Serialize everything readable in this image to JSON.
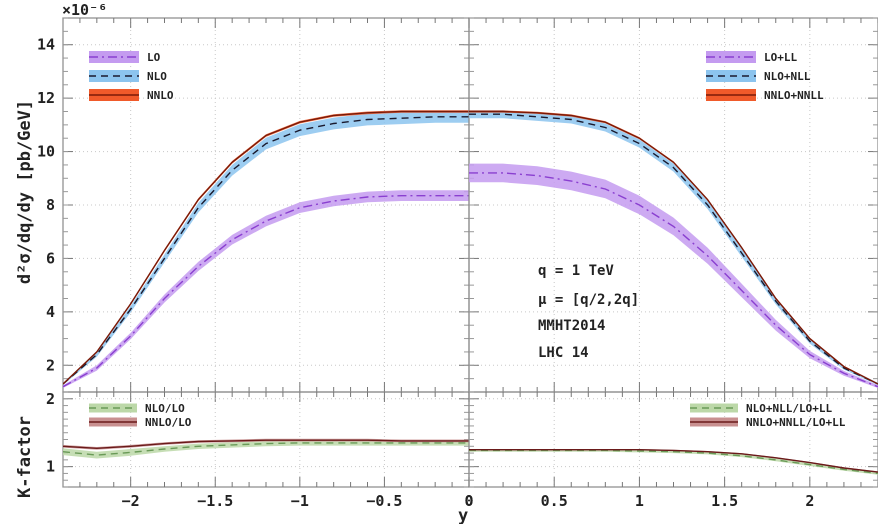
{
  "figure": {
    "exponent_label": "×10⁻⁶",
    "xlabel": "y",
    "top_ylabel": "d²σ/dq/dy [pb/GeV]",
    "bottom_ylabel": "K-factor",
    "annotations": [
      "q = 1 TeV",
      "μ = [q/2,2q]",
      "MMHT2014",
      "LHC 14"
    ]
  },
  "chart_data": [
    {
      "type": "line",
      "panel": "top-left",
      "ylabel": "d²σ/dq/dy [pb/GeV]",
      "xlim": [
        -2.4,
        0
      ],
      "ylim": [
        1,
        15
      ],
      "x_ticks": [
        -2,
        -1.5,
        -1,
        -0.5,
        0
      ],
      "y_ticks": [
        2,
        4,
        6,
        8,
        10,
        12,
        14
      ],
      "y_scale_factor": "1e-6",
      "legend_position": "top-left",
      "x": [
        -2.4,
        -2.2,
        -2.0,
        -1.8,
        -1.6,
        -1.4,
        -1.2,
        -1.0,
        -0.8,
        -0.6,
        -0.4,
        -0.2,
        0.0
      ],
      "series": [
        {
          "name": "LO",
          "style": "dash-dot",
          "color": "#8a3fd0",
          "band_color": "#c49bf0",
          "values": [
            1.2,
            1.9,
            3.1,
            4.5,
            5.7,
            6.7,
            7.4,
            7.9,
            8.15,
            8.3,
            8.35,
            8.35,
            8.35
          ],
          "band_halfwidth": [
            0.05,
            0.1,
            0.12,
            0.15,
            0.17,
            0.18,
            0.2,
            0.2,
            0.2,
            0.2,
            0.2,
            0.2,
            0.2
          ]
        },
        {
          "name": "NLO",
          "style": "dashed",
          "color": "#1a1a2e",
          "band_color": "#8cc4ee",
          "values": [
            1.3,
            2.4,
            4.1,
            6.0,
            7.9,
            9.3,
            10.3,
            10.8,
            11.05,
            11.2,
            11.25,
            11.3,
            11.3
          ],
          "band_halfwidth": [
            0.04,
            0.08,
            0.12,
            0.15,
            0.18,
            0.2,
            0.22,
            0.22,
            0.22,
            0.22,
            0.22,
            0.22,
            0.22
          ]
        },
        {
          "name": "NNLO",
          "style": "solid",
          "color": "#7a1a08",
          "band_color": "#f05a2a",
          "values": [
            1.3,
            2.5,
            4.3,
            6.3,
            8.2,
            9.6,
            10.6,
            11.1,
            11.35,
            11.45,
            11.5,
            11.5,
            11.5
          ],
          "band_halfwidth": [
            0.02,
            0.03,
            0.04,
            0.05,
            0.05,
            0.05,
            0.05,
            0.05,
            0.05,
            0.05,
            0.05,
            0.05,
            0.05
          ]
        }
      ]
    },
    {
      "type": "line",
      "panel": "top-right",
      "xlim": [
        0,
        2.4
      ],
      "ylim": [
        1,
        15
      ],
      "x_ticks": [
        0,
        0.5,
        1,
        1.5,
        2
      ],
      "legend_position": "top-right",
      "x": [
        0.0,
        0.2,
        0.4,
        0.6,
        0.8,
        1.0,
        1.2,
        1.4,
        1.6,
        1.8,
        2.0,
        2.2,
        2.4
      ],
      "series": [
        {
          "name": "LO+LL",
          "style": "dash-dot",
          "color": "#8a3fd0",
          "band_color": "#c49bf0",
          "values": [
            9.2,
            9.2,
            9.1,
            8.9,
            8.6,
            8.0,
            7.2,
            6.1,
            4.8,
            3.5,
            2.4,
            1.7,
            1.2
          ],
          "band_halfwidth": [
            0.35,
            0.35,
            0.35,
            0.35,
            0.35,
            0.35,
            0.33,
            0.3,
            0.25,
            0.2,
            0.14,
            0.09,
            0.05
          ]
        },
        {
          "name": "NLO+NLL",
          "style": "dashed",
          "color": "#1a1a2e",
          "band_color": "#8cc4ee",
          "values": [
            11.4,
            11.4,
            11.3,
            11.2,
            10.9,
            10.3,
            9.4,
            8.0,
            6.2,
            4.4,
            2.9,
            1.9,
            1.3
          ],
          "band_halfwidth": [
            0.15,
            0.15,
            0.15,
            0.15,
            0.15,
            0.15,
            0.15,
            0.15,
            0.14,
            0.12,
            0.09,
            0.06,
            0.04
          ]
        },
        {
          "name": "NNLO+NNLL",
          "style": "solid",
          "color": "#7a1a08",
          "band_color": "#f05a2a",
          "values": [
            11.5,
            11.5,
            11.45,
            11.35,
            11.1,
            10.5,
            9.6,
            8.2,
            6.4,
            4.5,
            3.0,
            1.95,
            1.3
          ],
          "band_halfwidth": [
            0.04,
            0.04,
            0.04,
            0.04,
            0.04,
            0.04,
            0.04,
            0.04,
            0.04,
            0.04,
            0.03,
            0.03,
            0.02
          ]
        }
      ]
    },
    {
      "type": "line",
      "panel": "bottom-left",
      "ylabel": "K-factor",
      "xlabel": "y",
      "xlim": [
        -2.4,
        0
      ],
      "ylim": [
        0.7,
        2.1
      ],
      "x_ticks": [
        -2,
        -1.5,
        -1,
        -0.5,
        0
      ],
      "y_ticks": [
        1,
        2
      ],
      "legend_position": "top-left",
      "x": [
        -2.4,
        -2.2,
        -2.0,
        -1.8,
        -1.6,
        -1.4,
        -1.2,
        -1.0,
        -0.8,
        -0.6,
        -0.4,
        -0.2,
        0.0
      ],
      "series": [
        {
          "name": "NLO/LO",
          "style": "dashed",
          "color": "#6a9a58",
          "band_color": "#bcd8a8",
          "values": [
            1.22,
            1.17,
            1.21,
            1.26,
            1.3,
            1.32,
            1.34,
            1.35,
            1.35,
            1.35,
            1.35,
            1.35,
            1.35
          ],
          "band_halfwidth": [
            0.05,
            0.05,
            0.05,
            0.04,
            0.04,
            0.04,
            0.04,
            0.04,
            0.04,
            0.04,
            0.04,
            0.04,
            0.04
          ]
        },
        {
          "name": "NNLO/LO",
          "style": "solid",
          "color": "#6a1a1a",
          "band_color": "#c89090",
          "values": [
            1.3,
            1.27,
            1.3,
            1.34,
            1.37,
            1.38,
            1.39,
            1.39,
            1.39,
            1.39,
            1.38,
            1.38,
            1.38
          ],
          "band_halfwidth": [
            0.02,
            0.02,
            0.02,
            0.02,
            0.02,
            0.02,
            0.02,
            0.02,
            0.02,
            0.02,
            0.02,
            0.02,
            0.02
          ]
        }
      ]
    },
    {
      "type": "line",
      "panel": "bottom-right",
      "xlabel": "y",
      "xlim": [
        0,
        2.4
      ],
      "ylim": [
        0.7,
        2.1
      ],
      "x_ticks": [
        0,
        0.5,
        1,
        1.5,
        2
      ],
      "legend_position": "top-right",
      "x": [
        0.0,
        0.2,
        0.4,
        0.6,
        0.8,
        1.0,
        1.2,
        1.4,
        1.6,
        1.8,
        2.0,
        2.2,
        2.4
      ],
      "series": [
        {
          "name": "NLO+NLL/LO+LL",
          "style": "dashed",
          "color": "#6a9a58",
          "band_color": "#bcd8a8",
          "values": [
            1.24,
            1.24,
            1.24,
            1.24,
            1.24,
            1.23,
            1.22,
            1.2,
            1.16,
            1.1,
            1.03,
            0.96,
            0.9
          ],
          "band_halfwidth": [
            0.02,
            0.02,
            0.02,
            0.02,
            0.02,
            0.02,
            0.02,
            0.02,
            0.02,
            0.02,
            0.02,
            0.02,
            0.02
          ]
        },
        {
          "name": "NNLO+NNLL/LO+LL",
          "style": "solid",
          "color": "#6a1a1a",
          "band_color": "#c89090",
          "values": [
            1.25,
            1.25,
            1.25,
            1.25,
            1.25,
            1.25,
            1.24,
            1.22,
            1.19,
            1.13,
            1.06,
            0.98,
            0.92
          ],
          "band_halfwidth": [
            0.01,
            0.01,
            0.01,
            0.01,
            0.01,
            0.01,
            0.01,
            0.01,
            0.01,
            0.01,
            0.01,
            0.01,
            0.01
          ]
        }
      ]
    }
  ]
}
